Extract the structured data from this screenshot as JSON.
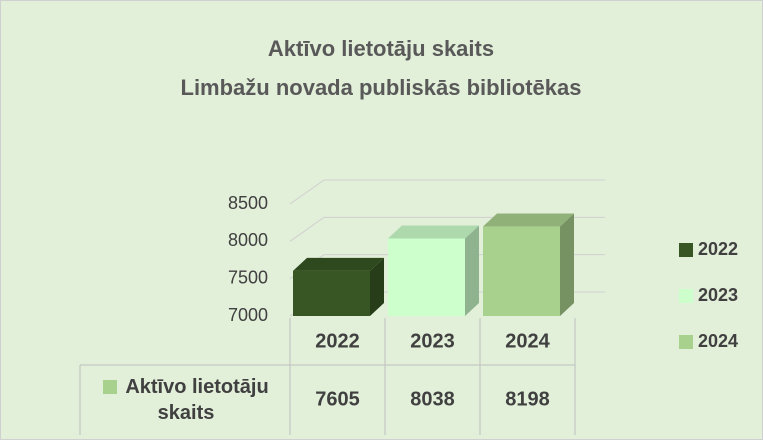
{
  "chart_data": {
    "type": "bar3d",
    "title": [
      "Aktīvo lietotāju skaits",
      "Limbažu novada publiskās bibliotēkas"
    ],
    "categories": [
      "2022",
      "2023",
      "2024"
    ],
    "series": [
      {
        "name": "Aktīvo lietotāju skaits",
        "color": "#a9d18e",
        "values": [
          7605,
          8038,
          8198
        ]
      }
    ],
    "colors": [
      "#375623",
      "#ccffcc",
      "#a9d18e"
    ],
    "ylim": [
      7000,
      8500
    ],
    "yticks": [
      7000,
      7500,
      8000,
      8500
    ],
    "grid": true,
    "legend": "right",
    "data_table": true
  }
}
